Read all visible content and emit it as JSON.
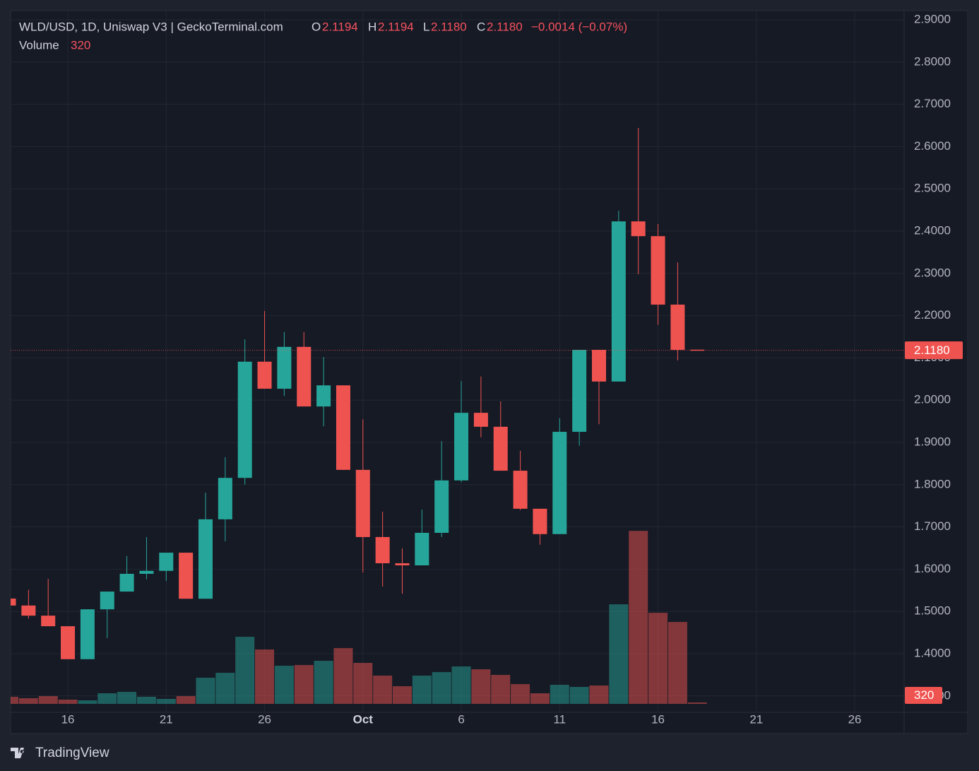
{
  "chart_data": {
    "type": "candlestick",
    "legend": {
      "symbol": "WLD/USD, 1D, Uniswap V3 | GeckoTerminal.com",
      "o_key": "O",
      "o": "2.1194",
      "h_key": "H",
      "h": "2.1194",
      "l_key": "L",
      "l": "2.1180",
      "c_key": "C",
      "c": "2.1180",
      "change": "−0.0014 (−0.07%)",
      "volume_key": "Volume"
    },
    "last_price_label": "2.1180",
    "brand": "TradingView",
    "x": [
      "09-13",
      "09-14",
      "09-15",
      "09-16",
      "09-17",
      "09-18",
      "09-19",
      "09-20",
      "09-21",
      "09-22",
      "09-23",
      "09-24",
      "09-25",
      "09-26",
      "09-27",
      "09-28",
      "09-29",
      "09-30",
      "10-01",
      "10-02",
      "10-03",
      "10-04",
      "10-05",
      "10-06",
      "10-07",
      "10-08",
      "10-09",
      "10-10",
      "10-11",
      "10-12",
      "10-13",
      "10-14",
      "10-15",
      "10-16",
      "10-17",
      "10-18"
    ],
    "open": [
      1.5304,
      1.514,
      1.49,
      1.465,
      1.387,
      1.505,
      1.547,
      1.589,
      1.596,
      1.639,
      1.53,
      1.718,
      1.816,
      2.091,
      2.027,
      2.126,
      1.985,
      2.035,
      1.835,
      1.676,
      1.614,
      1.609,
      1.686,
      1.81,
      1.97,
      1.937,
      1.833,
      1.743,
      1.683,
      1.925,
      2.119,
      2.044,
      2.423,
      2.388,
      2.226,
      2.1194
    ],
    "high": [
      1.5304,
      1.551,
      1.577,
      1.465,
      1.505,
      1.547,
      1.631,
      1.676,
      1.639,
      1.639,
      1.781,
      1.865,
      2.144,
      2.211,
      2.161,
      2.161,
      2.102,
      2.035,
      1.955,
      1.736,
      1.649,
      1.741,
      1.903,
      2.045,
      2.056,
      1.997,
      1.88,
      1.743,
      1.957,
      2.119,
      2.119,
      2.448,
      2.644,
      2.417,
      2.326,
      2.1194
    ],
    "low": [
      1.514,
      1.483,
      1.465,
      1.387,
      1.387,
      1.437,
      1.547,
      1.576,
      1.572,
      1.53,
      1.53,
      1.666,
      1.8,
      2.027,
      2.01,
      1.985,
      1.938,
      1.835,
      1.592,
      1.559,
      1.542,
      1.609,
      1.676,
      1.806,
      1.912,
      1.833,
      1.74,
      1.658,
      1.683,
      1.892,
      1.943,
      2.044,
      2.298,
      2.178,
      2.094,
      2.118
    ],
    "close": [
      1.514,
      1.49,
      1.465,
      1.387,
      1.505,
      1.547,
      1.589,
      1.596,
      1.639,
      1.53,
      1.718,
      1.816,
      2.091,
      2.027,
      2.126,
      1.985,
      2.035,
      1.835,
      1.676,
      1.614,
      1.609,
      1.686,
      1.81,
      1.97,
      1.937,
      1.833,
      1.743,
      1.683,
      1.925,
      2.119,
      2.044,
      2.423,
      2.388,
      2.226,
      2.119,
      2.118
    ],
    "volume": [
      1600,
      1280,
      1760,
      960,
      800,
      2400,
      2720,
      1600,
      1120,
      1760,
      5920,
      7040,
      15200,
      12320,
      8640,
      8800,
      9760,
      12640,
      9280,
      6400,
      4000,
      6400,
      7200,
      8480,
      7840,
      6560,
      4480,
      2400,
      4320,
      3840,
      4160,
      22560,
      39200,
      20640,
      18560,
      320
    ],
    "up_color": "#26a69a",
    "down_color": "#ef5350",
    "ylim": [
      1.2612,
      2.9301
    ],
    "yticks": [
      {
        "value": 1.3,
        "label": "1.3000"
      },
      {
        "value": 1.4,
        "label": "1.4000"
      },
      {
        "value": 1.5,
        "label": "1.5000"
      },
      {
        "value": 1.6,
        "label": "1.6000"
      },
      {
        "value": 1.7,
        "label": "1.7000"
      },
      {
        "value": 1.8,
        "label": "1.8000"
      },
      {
        "value": 1.9,
        "label": "1.9000"
      },
      {
        "value": 2.0,
        "label": "2.0000"
      },
      {
        "value": 2.1,
        "label": "2.1000"
      },
      {
        "value": 2.2,
        "label": "2.2000"
      },
      {
        "value": 2.3,
        "label": "2.3000"
      },
      {
        "value": 2.4,
        "label": "2.4000"
      },
      {
        "value": 2.5,
        "label": "2.5000"
      },
      {
        "value": 2.6,
        "label": "2.6000"
      },
      {
        "value": 2.7,
        "label": "2.7000"
      },
      {
        "value": 2.8,
        "label": "2.8000"
      },
      {
        "value": 2.9,
        "label": "2.9000"
      }
    ],
    "volume_ylim": [
      0,
      155000
    ],
    "xticks": [
      {
        "value": "09-16",
        "label": "16"
      },
      {
        "value": "09-21",
        "label": "21"
      },
      {
        "value": "09-26",
        "label": "26"
      },
      {
        "value": "10-01",
        "label": "Oct"
      },
      {
        "value": "10-06",
        "label": "6"
      },
      {
        "value": "10-11",
        "label": "11"
      },
      {
        "value": "10-16",
        "label": "16"
      },
      {
        "value": "10-21",
        "label": "21"
      },
      {
        "value": "10-26",
        "label": "26"
      }
    ],
    "grid": true
  }
}
